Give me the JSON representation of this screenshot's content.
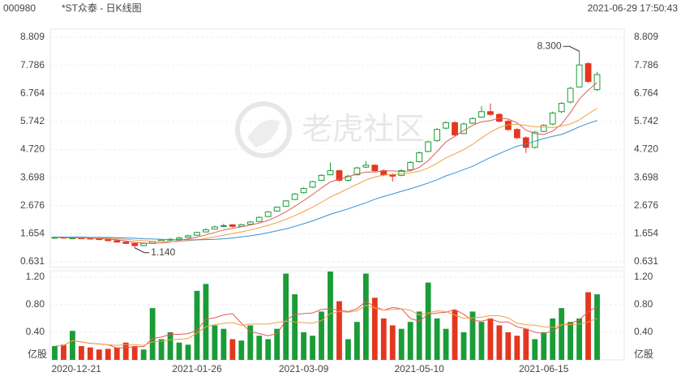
{
  "header": {
    "code": "000980",
    "title": "*ST众泰 - 日K线图",
    "timestamp": "2021-06-29 17:50:43"
  },
  "watermark": "老虎社区",
  "chart_data": {
    "type": "candlestick",
    "categories": [
      "2020-12-21",
      null,
      null,
      null,
      null,
      null,
      null,
      null,
      null,
      null,
      null,
      null,
      null,
      null,
      null,
      null,
      "2021-01-26",
      null,
      null,
      null,
      null,
      null,
      null,
      null,
      null,
      null,
      null,
      null,
      "2021-03-09",
      null,
      null,
      null,
      null,
      null,
      null,
      null,
      null,
      null,
      null,
      null,
      null,
      "2021-05-10",
      null,
      null,
      null,
      null,
      null,
      null,
      null,
      null,
      null,
      null,
      null,
      null,
      null,
      "2021-06-15",
      null,
      null,
      null,
      null,
      null,
      null
    ],
    "candles": [
      [
        1.5,
        1.55,
        1.48,
        1.52
      ],
      [
        1.52,
        1.54,
        1.48,
        1.5
      ],
      [
        1.5,
        1.53,
        1.47,
        1.5
      ],
      [
        1.5,
        1.52,
        1.46,
        1.49
      ],
      [
        1.49,
        1.51,
        1.44,
        1.47
      ],
      [
        1.47,
        1.49,
        1.42,
        1.44
      ],
      [
        1.44,
        1.46,
        1.38,
        1.4
      ],
      [
        1.4,
        1.42,
        1.33,
        1.35
      ],
      [
        1.35,
        1.37,
        1.28,
        1.3
      ],
      [
        1.3,
        1.32,
        1.14,
        1.22
      ],
      [
        1.22,
        1.33,
        1.2,
        1.3
      ],
      [
        1.3,
        1.4,
        1.28,
        1.37
      ],
      [
        1.37,
        1.45,
        1.35,
        1.42
      ],
      [
        1.44,
        1.5,
        1.4,
        1.45
      ],
      [
        1.45,
        1.55,
        1.43,
        1.5
      ],
      [
        1.52,
        1.62,
        1.5,
        1.58
      ],
      [
        1.6,
        1.72,
        1.58,
        1.7
      ],
      [
        1.72,
        1.85,
        1.7,
        1.8
      ],
      [
        1.82,
        1.95,
        1.8,
        1.9
      ],
      [
        1.92,
        2.02,
        1.9,
        1.95
      ],
      [
        1.98,
        2.0,
        1.88,
        1.92
      ],
      [
        1.92,
        2.02,
        1.9,
        1.98
      ],
      [
        2.0,
        2.12,
        1.98,
        2.08
      ],
      [
        2.1,
        2.28,
        2.08,
        2.25
      ],
      [
        2.28,
        2.48,
        2.26,
        2.45
      ],
      [
        2.48,
        2.65,
        2.46,
        2.62
      ],
      [
        2.65,
        2.88,
        2.63,
        2.85
      ],
      [
        2.9,
        3.13,
        2.88,
        3.1
      ],
      [
        3.15,
        3.35,
        3.12,
        3.3
      ],
      [
        3.35,
        3.58,
        3.32,
        3.55
      ],
      [
        3.6,
        3.82,
        3.58,
        3.78
      ],
      [
        3.8,
        4.25,
        3.78,
        3.95
      ],
      [
        3.95,
        3.98,
        3.55,
        3.6
      ],
      [
        3.6,
        3.8,
        3.55,
        3.75
      ],
      [
        3.8,
        4.1,
        3.78,
        4.05
      ],
      [
        4.08,
        4.3,
        4.05,
        4.15
      ],
      [
        4.15,
        4.18,
        3.9,
        3.95
      ],
      [
        3.95,
        4.0,
        3.75,
        3.8
      ],
      [
        3.8,
        3.85,
        3.55,
        3.75
      ],
      [
        3.78,
        4.0,
        3.75,
        3.95
      ],
      [
        3.98,
        4.3,
        3.95,
        4.25
      ],
      [
        4.28,
        4.65,
        4.25,
        4.6
      ],
      [
        4.65,
        5.05,
        4.62,
        5.0
      ],
      [
        5.05,
        5.5,
        5.0,
        5.45
      ],
      [
        5.5,
        5.75,
        5.45,
        5.7
      ],
      [
        5.7,
        5.75,
        5.2,
        5.25
      ],
      [
        5.3,
        5.7,
        5.28,
        5.65
      ],
      [
        5.68,
        5.9,
        5.65,
        5.85
      ],
      [
        5.9,
        6.3,
        5.88,
        6.1
      ],
      [
        6.1,
        6.4,
        5.95,
        6.0
      ],
      [
        6.0,
        6.05,
        5.7,
        5.75
      ],
      [
        5.75,
        5.8,
        5.4,
        5.45
      ],
      [
        5.45,
        5.5,
        5.1,
        5.15
      ],
      [
        5.15,
        5.2,
        4.6,
        4.8
      ],
      [
        4.8,
        5.4,
        4.75,
        5.35
      ],
      [
        5.38,
        5.65,
        5.35,
        5.6
      ],
      [
        5.65,
        6.1,
        5.6,
        6.05
      ],
      [
        6.1,
        6.45,
        6.05,
        6.4
      ],
      [
        6.45,
        7.0,
        6.4,
        6.95
      ],
      [
        7.0,
        8.3,
        6.98,
        7.8
      ],
      [
        7.85,
        7.9,
        7.15,
        7.2
      ],
      [
        6.9,
        7.55,
        6.85,
        7.45
      ]
    ],
    "colors": {
      "up": "#1a9c37",
      "down": "#e4371f"
    },
    "ylim": [
      0.631,
      8.809
    ],
    "yticks": [
      0.631,
      1.654,
      2.676,
      3.698,
      {
        "value": 4.72,
        "label": "4.720"
      },
      5.742,
      6.764,
      7.786,
      8.809
    ],
    "grid": true,
    "ma": [
      {
        "color": "#e25a5a",
        "values": [
          1.52,
          1.51,
          1.51,
          1.5,
          1.5,
          1.48,
          1.46,
          1.43,
          1.39,
          1.34,
          1.31,
          1.31,
          1.32,
          1.35,
          1.41,
          1.46,
          1.53,
          1.61,
          1.7,
          1.79,
          1.85,
          1.91,
          1.97,
          2.04,
          2.14,
          2.28,
          2.45,
          2.65,
          2.86,
          3.08,
          3.32,
          3.54,
          3.64,
          3.73,
          3.83,
          3.9,
          3.9,
          3.94,
          3.94,
          3.92,
          3.94,
          4.07,
          4.31,
          4.65,
          5.0,
          5.2,
          5.41,
          5.6,
          5.73,
          5.77,
          5.87,
          5.83,
          5.69,
          5.43,
          5.3,
          5.27,
          5.39,
          5.64,
          6.07,
          6.56,
          6.88,
          7.16
        ]
      },
      {
        "color": "#f0a040",
        "values": [
          1.52,
          1.52,
          1.52,
          1.51,
          1.51,
          1.5,
          1.49,
          1.47,
          1.45,
          1.42,
          1.4,
          1.38,
          1.37,
          1.37,
          1.37,
          1.4,
          1.43,
          1.48,
          1.54,
          1.6,
          1.66,
          1.72,
          1.79,
          1.87,
          1.96,
          2.06,
          2.18,
          2.31,
          2.46,
          2.62,
          2.8,
          2.99,
          3.14,
          3.3,
          3.45,
          3.61,
          3.72,
          3.79,
          3.81,
          3.83,
          3.87,
          3.93,
          4.05,
          4.22,
          4.42,
          4.56,
          4.72,
          4.91,
          5.14,
          5.35,
          5.52,
          5.62,
          5.64,
          5.6,
          5.55,
          5.54,
          5.52,
          5.58,
          5.65,
          5.8,
          6.02,
          6.22
        ]
      },
      {
        "color": "#3a8fd0",
        "values": [
          1.53,
          1.53,
          1.53,
          1.53,
          1.52,
          1.52,
          1.52,
          1.51,
          1.5,
          1.49,
          1.47,
          1.46,
          1.45,
          1.44,
          1.43,
          1.43,
          1.43,
          1.44,
          1.45,
          1.47,
          1.5,
          1.54,
          1.58,
          1.63,
          1.69,
          1.76,
          1.83,
          1.92,
          2.02,
          2.12,
          2.24,
          2.36,
          2.46,
          2.56,
          2.67,
          2.78,
          2.91,
          3.01,
          3.1,
          3.2,
          3.29,
          3.39,
          3.5,
          3.62,
          3.76,
          3.87,
          3.99,
          4.11,
          4.27,
          4.43,
          4.57,
          4.71,
          4.84,
          4.92,
          5.02,
          5.12,
          5.2,
          5.27,
          5.4,
          5.55,
          5.67,
          5.78
        ]
      }
    ],
    "annotations": [
      {
        "label": "8.300",
        "value": 8.3
      },
      {
        "label": "1.140",
        "value": 1.14
      }
    ],
    "volume": {
      "values": [
        0.2,
        0.22,
        0.42,
        0.2,
        0.18,
        0.15,
        0.16,
        0.18,
        0.25,
        0.2,
        0.15,
        0.75,
        0.3,
        0.4,
        0.25,
        0.22,
        1.0,
        1.1,
        0.5,
        0.45,
        0.3,
        0.28,
        0.5,
        0.35,
        0.3,
        0.45,
        1.25,
        0.95,
        0.4,
        0.35,
        0.7,
        1.28,
        0.85,
        0.3,
        0.55,
        1.25,
        0.9,
        0.6,
        0.5,
        0.45,
        0.55,
        0.7,
        1.12,
        0.6,
        0.45,
        0.72,
        0.4,
        0.7,
        0.55,
        0.6,
        0.5,
        0.4,
        0.35,
        0.45,
        0.3,
        0.4,
        0.6,
        0.75,
        0.55,
        0.6,
        0.98,
        0.95
      ],
      "ylim": [
        0,
        1.28
      ],
      "yticks": [
        {
          "value": 0.4,
          "label": "0.40"
        },
        {
          "value": 0.8,
          "label": "0.80"
        },
        {
          "value": 1.2,
          "label": "1.20"
        }
      ],
      "unit": "亿股",
      "ma": [
        {
          "color": "#e25a5a",
          "values": [
            0.2,
            0.21,
            0.28,
            0.26,
            0.24,
            0.23,
            0.22,
            0.17,
            0.18,
            0.19,
            0.19,
            0.31,
            0.33,
            0.37,
            0.37,
            0.38,
            0.43,
            0.59,
            0.61,
            0.65,
            0.67,
            0.53,
            0.41,
            0.38,
            0.35,
            0.38,
            0.57,
            0.66,
            0.67,
            0.68,
            0.73,
            0.74,
            0.72,
            0.7,
            0.74,
            0.85,
            0.77,
            0.72,
            0.76,
            0.74,
            0.6,
            0.56,
            0.66,
            0.68,
            0.69,
            0.73,
            0.66,
            0.57,
            0.56,
            0.59,
            0.55,
            0.55,
            0.48,
            0.45,
            0.4,
            0.38,
            0.42,
            0.5,
            0.53,
            0.58,
            0.7,
            0.77
          ]
        },
        {
          "color": "#f0a040",
          "values": [
            0.2,
            0.21,
            0.28,
            0.26,
            0.24,
            0.23,
            0.22,
            0.21,
            0.22,
            0.22,
            0.21,
            0.26,
            0.27,
            0.29,
            0.3,
            0.31,
            0.39,
            0.48,
            0.51,
            0.53,
            0.54,
            0.5,
            0.52,
            0.52,
            0.52,
            0.54,
            0.56,
            0.55,
            0.54,
            0.53,
            0.57,
            0.67,
            0.7,
            0.69,
            0.71,
            0.79,
            0.75,
            0.72,
            0.73,
            0.74,
            0.72,
            0.65,
            0.68,
            0.71,
            0.7,
            0.65,
            0.6,
            0.61,
            0.62,
            0.64,
            0.64,
            0.61,
            0.53,
            0.51,
            0.5,
            0.48,
            0.47,
            0.51,
            0.51,
            0.52,
            0.55,
            0.6
          ]
        }
      ]
    }
  }
}
